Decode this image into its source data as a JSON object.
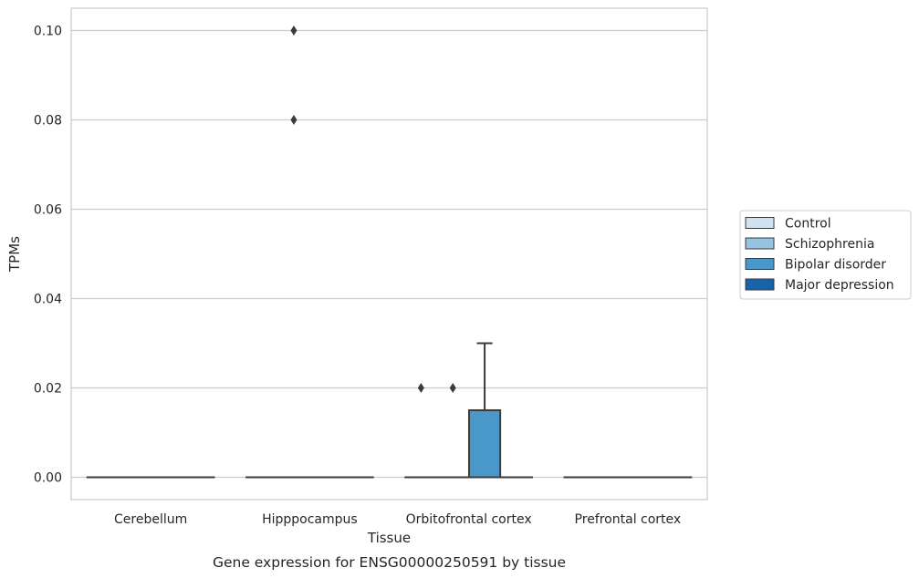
{
  "chart_data": {
    "type": "box",
    "caption": "Gene expression for ENSG00000250591 by tissue",
    "xlabel": "Tissue",
    "ylabel": "TPMs",
    "ylim": [
      -0.005,
      0.105
    ],
    "yticks": [
      0.0,
      0.02,
      0.04,
      0.06,
      0.08,
      0.1
    ],
    "ytick_labels": [
      "0.00",
      "0.02",
      "0.04",
      "0.06",
      "0.08",
      "0.10"
    ],
    "categories": [
      "Cerebellum",
      "Hipppocampus",
      "Orbitofrontal cortex",
      "Prefrontal cortex"
    ],
    "grid": true,
    "legend_position": "right",
    "series": [
      {
        "name": "Control",
        "color": "#d0e1f2",
        "boxes": [
          {
            "category": "Cerebellum",
            "q1": 0,
            "median": 0,
            "q3": 0,
            "whisker_low": 0,
            "whisker_high": 0,
            "outliers": []
          },
          {
            "category": "Hipppocampus",
            "q1": 0,
            "median": 0,
            "q3": 0,
            "whisker_low": 0,
            "whisker_high": 0,
            "outliers": []
          },
          {
            "category": "Orbitofrontal cortex",
            "q1": 0,
            "median": 0,
            "q3": 0,
            "whisker_low": 0,
            "whisker_high": 0,
            "outliers": [
              0.02
            ]
          },
          {
            "category": "Prefrontal cortex",
            "q1": 0,
            "median": 0,
            "q3": 0,
            "whisker_low": 0,
            "whisker_high": 0,
            "outliers": []
          }
        ]
      },
      {
        "name": "Schizophrenia",
        "color": "#94c4df",
        "boxes": [
          {
            "category": "Cerebellum",
            "q1": 0,
            "median": 0,
            "q3": 0,
            "whisker_low": 0,
            "whisker_high": 0,
            "outliers": []
          },
          {
            "category": "Hipppocampus",
            "q1": 0,
            "median": 0,
            "q3": 0,
            "whisker_low": 0,
            "whisker_high": 0,
            "outliers": [
              0.1,
              0.08
            ]
          },
          {
            "category": "Orbitofrontal cortex",
            "q1": 0,
            "median": 0,
            "q3": 0,
            "whisker_low": 0,
            "whisker_high": 0,
            "outliers": [
              0.02
            ]
          },
          {
            "category": "Prefrontal cortex",
            "q1": 0,
            "median": 0,
            "q3": 0,
            "whisker_low": 0,
            "whisker_high": 0,
            "outliers": []
          }
        ]
      },
      {
        "name": "Bipolar disorder",
        "color": "#4a98c9",
        "boxes": [
          {
            "category": "Cerebellum",
            "q1": 0,
            "median": 0,
            "q3": 0,
            "whisker_low": 0,
            "whisker_high": 0,
            "outliers": []
          },
          {
            "category": "Hipppocampus",
            "q1": 0,
            "median": 0,
            "q3": 0,
            "whisker_low": 0,
            "whisker_high": 0,
            "outliers": []
          },
          {
            "category": "Orbitofrontal cortex",
            "q1": 0,
            "median": 0,
            "q3": 0.015,
            "whisker_low": 0,
            "whisker_high": 0.03,
            "outliers": []
          },
          {
            "category": "Prefrontal cortex",
            "q1": 0,
            "median": 0,
            "q3": 0,
            "whisker_low": 0,
            "whisker_high": 0,
            "outliers": []
          }
        ]
      },
      {
        "name": "Major depression",
        "color": "#1764ab",
        "boxes": [
          {
            "category": "Cerebellum",
            "q1": 0,
            "median": 0,
            "q3": 0,
            "whisker_low": 0,
            "whisker_high": 0,
            "outliers": []
          },
          {
            "category": "Hipppocampus",
            "q1": 0,
            "median": 0,
            "q3": 0,
            "whisker_low": 0,
            "whisker_high": 0,
            "outliers": []
          },
          {
            "category": "Orbitofrontal cortex",
            "q1": 0,
            "median": 0,
            "q3": 0,
            "whisker_low": 0,
            "whisker_high": 0,
            "outliers": []
          },
          {
            "category": "Prefrontal cortex",
            "q1": 0,
            "median": 0,
            "q3": 0,
            "whisker_low": 0,
            "whisker_high": 0,
            "outliers": []
          }
        ]
      }
    ]
  }
}
